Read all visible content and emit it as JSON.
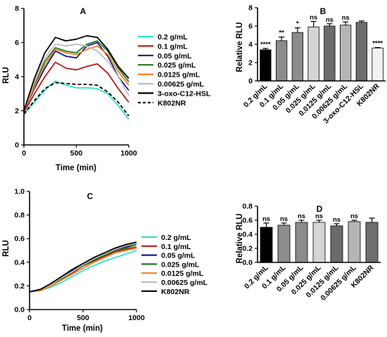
{
  "chart_data": [
    {
      "panel": "A",
      "type": "line",
      "title": "A",
      "xlabel": "Time (min)",
      "ylabel": "RLU",
      "xlim": [
        0,
        1000
      ],
      "ylim": [
        0,
        8
      ],
      "xticks": [
        0,
        500,
        1000
      ],
      "yticks": [
        0,
        2,
        4,
        6,
        8
      ],
      "legend_position": "right",
      "series": [
        {
          "name": "0.2 g/mL",
          "color": "#2ee6c8",
          "dash": false,
          "points": [
            [
              0,
              1.8
            ],
            [
              100,
              2.5
            ],
            [
              200,
              3.2
            ],
            [
              300,
              3.75
            ],
            [
              400,
              3.5
            ],
            [
              500,
              3.35
            ],
            [
              600,
              3.35
            ],
            [
              700,
              3.3
            ],
            [
              800,
              3.0
            ],
            [
              900,
              2.3
            ],
            [
              1000,
              1.5
            ]
          ]
        },
        {
          "name": "0.1 g/mL",
          "color": "#b51a1a",
          "dash": false,
          "points": [
            [
              0,
              1.9
            ],
            [
              100,
              3.0
            ],
            [
              200,
              4.0
            ],
            [
              300,
              4.85
            ],
            [
              400,
              4.5
            ],
            [
              500,
              4.4
            ],
            [
              600,
              4.6
            ],
            [
              700,
              4.75
            ],
            [
              800,
              4.2
            ],
            [
              900,
              3.3
            ],
            [
              1000,
              2.5
            ]
          ]
        },
        {
          "name": "0.05 g/mL",
          "color": "#141a8c",
          "dash": false,
          "points": [
            [
              0,
              2.0
            ],
            [
              100,
              3.3
            ],
            [
              200,
              4.5
            ],
            [
              300,
              5.5
            ],
            [
              400,
              5.2
            ],
            [
              500,
              5.1
            ],
            [
              600,
              5.8
            ],
            [
              700,
              6.0
            ],
            [
              800,
              5.2
            ],
            [
              900,
              4.0
            ],
            [
              1000,
              3.2
            ]
          ]
        },
        {
          "name": "0.025 g/mL",
          "color": "#1e7a1e",
          "dash": false,
          "points": [
            [
              0,
              2.0
            ],
            [
              100,
              3.5
            ],
            [
              200,
              4.9
            ],
            [
              300,
              5.7
            ],
            [
              400,
              5.5
            ],
            [
              500,
              5.4
            ],
            [
              600,
              5.9
            ],
            [
              700,
              6.1
            ],
            [
              800,
              5.5
            ],
            [
              900,
              4.5
            ],
            [
              1000,
              3.7
            ]
          ]
        },
        {
          "name": "0.0125 g/mL",
          "color": "#ff7a1a",
          "dash": false,
          "points": [
            [
              0,
              2.0
            ],
            [
              100,
              3.4
            ],
            [
              200,
              4.7
            ],
            [
              300,
              5.6
            ],
            [
              400,
              5.4
            ],
            [
              500,
              5.3
            ],
            [
              600,
              5.6
            ],
            [
              700,
              5.8
            ],
            [
              800,
              5.3
            ],
            [
              900,
              4.3
            ],
            [
              1000,
              3.5
            ]
          ]
        },
        {
          "name": "0.00625 g/mL",
          "color": "#bdbdbd",
          "dash": false,
          "points": [
            [
              0,
              2.0
            ],
            [
              100,
              3.7
            ],
            [
              200,
              5.1
            ],
            [
              300,
              5.9
            ],
            [
              400,
              5.8
            ],
            [
              500,
              5.9
            ],
            [
              600,
              5.8
            ],
            [
              700,
              5.5
            ],
            [
              800,
              4.9
            ],
            [
              900,
              4.0
            ],
            [
              1000,
              2.9
            ]
          ]
        },
        {
          "name": "3-oxo-C12-HSL",
          "color": "#000000",
          "dash": false,
          "points": [
            [
              0,
              2.0
            ],
            [
              100,
              3.9
            ],
            [
              200,
              5.4
            ],
            [
              300,
              6.3
            ],
            [
              400,
              6.1
            ],
            [
              500,
              6.2
            ],
            [
              600,
              6.4
            ],
            [
              700,
              6.3
            ],
            [
              800,
              5.6
            ],
            [
              900,
              4.6
            ],
            [
              1000,
              3.9
            ]
          ]
        },
        {
          "name": "K802NR",
          "color": "#000000",
          "dash": true,
          "points": [
            [
              0,
              1.8
            ],
            [
              100,
              2.6
            ],
            [
              200,
              3.3
            ],
            [
              300,
              3.65
            ],
            [
              400,
              3.6
            ],
            [
              500,
              3.55
            ],
            [
              600,
              3.55
            ],
            [
              700,
              3.5
            ],
            [
              800,
              3.1
            ],
            [
              900,
              2.5
            ],
            [
              1000,
              1.7
            ]
          ]
        }
      ]
    },
    {
      "panel": "B",
      "type": "bar",
      "title": "B",
      "xlabel": "",
      "ylabel": "Relative RLU",
      "ylim": [
        0,
        8
      ],
      "yticks": [
        0,
        2,
        4,
        6,
        8
      ],
      "categories": [
        "0.2 g/mL",
        "0.1 g/mL",
        "0.05 g/mL",
        "0.025 g/mL",
        "0.0125 g/mL",
        "0.00625 g/mL",
        "3-oxo-C12-HSL",
        "K802NR"
      ],
      "values": [
        3.4,
        4.4,
        5.3,
        5.9,
        6.0,
        6.1,
        6.4,
        3.6
      ],
      "errors": [
        0.15,
        0.4,
        0.5,
        0.6,
        0.25,
        0.35,
        0.15,
        0.05
      ],
      "significance": [
        "****",
        "**",
        "*",
        "ns",
        "ns",
        "ns",
        "",
        "****"
      ],
      "colors": [
        "#000000",
        "#8c8c8c",
        "#8c8c8c",
        "#d4d4d4",
        "#6b6b6b",
        "#b5b5b5",
        "#6e6e6e",
        "#f2f2f2"
      ]
    },
    {
      "panel": "C",
      "type": "line",
      "title": "C",
      "xlabel": "Time (min)",
      "ylabel": "RLU",
      "xlim": [
        0,
        1000
      ],
      "ylim": [
        0,
        1.0
      ],
      "xticks": [
        0,
        500,
        1000
      ],
      "yticks": [
        "0.0",
        "0.2",
        "0.4",
        "0.6",
        "0.8",
        "1.0"
      ],
      "legend_position": "right",
      "series": [
        {
          "name": "0.2 g/mL",
          "color": "#2ee6c8",
          "dash": false,
          "points": [
            [
              0,
              0.15
            ],
            [
              100,
              0.16
            ],
            [
              200,
              0.19
            ],
            [
              300,
              0.23
            ],
            [
              400,
              0.28
            ],
            [
              500,
              0.33
            ],
            [
              600,
              0.37
            ],
            [
              700,
              0.41
            ],
            [
              800,
              0.44
            ],
            [
              900,
              0.47
            ],
            [
              1000,
              0.5
            ]
          ]
        },
        {
          "name": "0.1 g/mL",
          "color": "#b51a1a",
          "dash": false,
          "points": [
            [
              0,
              0.15
            ],
            [
              100,
              0.17
            ],
            [
              200,
              0.21
            ],
            [
              300,
              0.26
            ],
            [
              400,
              0.31
            ],
            [
              500,
              0.37
            ],
            [
              600,
              0.41
            ],
            [
              700,
              0.45
            ],
            [
              800,
              0.49
            ],
            [
              900,
              0.51
            ],
            [
              1000,
              0.53
            ]
          ]
        },
        {
          "name": "0.05 g/mL",
          "color": "#141a8c",
          "dash": false,
          "points": [
            [
              0,
              0.15
            ],
            [
              100,
              0.17
            ],
            [
              200,
              0.21
            ],
            [
              300,
              0.27
            ],
            [
              400,
              0.33
            ],
            [
              500,
              0.38
            ],
            [
              600,
              0.43
            ],
            [
              700,
              0.47
            ],
            [
              800,
              0.51
            ],
            [
              900,
              0.53
            ],
            [
              1000,
              0.56
            ]
          ]
        },
        {
          "name": "0.025 g/mL",
          "color": "#1e7a1e",
          "dash": false,
          "points": [
            [
              0,
              0.15
            ],
            [
              100,
              0.17
            ],
            [
              200,
              0.21
            ],
            [
              300,
              0.26
            ],
            [
              400,
              0.32
            ],
            [
              500,
              0.37
            ],
            [
              600,
              0.42
            ],
            [
              700,
              0.46
            ],
            [
              800,
              0.5
            ],
            [
              900,
              0.52
            ],
            [
              1000,
              0.55
            ]
          ]
        },
        {
          "name": "0.0125 g/mL",
          "color": "#ff7a1a",
          "dash": false,
          "points": [
            [
              0,
              0.15
            ],
            [
              100,
              0.16
            ],
            [
              200,
              0.2
            ],
            [
              300,
              0.25
            ],
            [
              400,
              0.3
            ],
            [
              500,
              0.35
            ],
            [
              600,
              0.4
            ],
            [
              700,
              0.44
            ],
            [
              800,
              0.48
            ],
            [
              900,
              0.5
            ],
            [
              1000,
              0.52
            ]
          ]
        },
        {
          "name": "0.00625 g/mL",
          "color": "#bdbdbd",
          "dash": false,
          "points": [
            [
              0,
              0.15
            ],
            [
              100,
              0.17
            ],
            [
              200,
              0.21
            ],
            [
              300,
              0.27
            ],
            [
              400,
              0.32
            ],
            [
              500,
              0.38
            ],
            [
              600,
              0.43
            ],
            [
              700,
              0.47
            ],
            [
              800,
              0.51
            ],
            [
              900,
              0.54
            ],
            [
              1000,
              0.56
            ]
          ]
        },
        {
          "name": "K802NR",
          "color": "#000000",
          "dash": false,
          "points": [
            [
              0,
              0.15
            ],
            [
              100,
              0.17
            ],
            [
              200,
              0.22
            ],
            [
              300,
              0.28
            ],
            [
              400,
              0.34
            ],
            [
              500,
              0.39
            ],
            [
              600,
              0.44
            ],
            [
              700,
              0.48
            ],
            [
              800,
              0.52
            ],
            [
              900,
              0.55
            ],
            [
              1000,
              0.57
            ]
          ]
        }
      ]
    },
    {
      "panel": "D",
      "type": "bar",
      "title": "D",
      "xlabel": "",
      "ylabel": "Relative RLU",
      "ylim": [
        0,
        0.8
      ],
      "yticks": [
        "0.0",
        "0.2",
        "0.4",
        "0.6",
        "0.8"
      ],
      "categories": [
        "0.2 g/mL",
        "0.1 g/mL",
        "0.05 g/mL",
        "0.025 g/mL",
        "0.0125 g/mL",
        "0.00625 g/mL",
        "K802NR"
      ],
      "values": [
        0.5,
        0.53,
        0.57,
        0.57,
        0.52,
        0.58,
        0.57
      ],
      "errors": [
        0.06,
        0.03,
        0.03,
        0.03,
        0.03,
        0.02,
        0.06
      ],
      "significance": [
        "ns",
        "ns",
        "ns",
        "ns",
        "ns",
        "ns",
        ""
      ],
      "colors": [
        "#000000",
        "#8c8c8c",
        "#8c8c8c",
        "#d4d4d4",
        "#6b6b6b",
        "#b5b5b5",
        "#6e6e6e"
      ]
    }
  ]
}
